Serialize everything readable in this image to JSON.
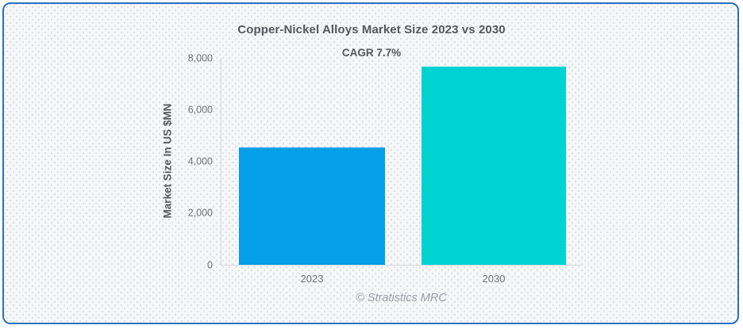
{
  "chart_data": {
    "type": "bar",
    "title": "Copper-Nickel Alloys Market Size 2023 vs 2030",
    "subtitle": "CAGR 7.7%",
    "categories": [
      "2023",
      "2030"
    ],
    "values": [
      4546,
      7675
    ],
    "xlabel": "",
    "ylabel": "Market Size In US $MN",
    "ylim": [
      0,
      8000
    ],
    "yticks": [
      0,
      2000,
      4000,
      6000,
      8000
    ],
    "ytick_labels": [
      "0",
      "2,000",
      "4,000",
      "6,000",
      "8,000"
    ],
    "bar_colors": [
      "#05A0E9",
      "#00D2D3"
    ],
    "legend_position": "none",
    "grid": false
  },
  "footer": {
    "credit": "© Stratistics MRC"
  },
  "colors": {
    "card_border": "#2A6FC2",
    "bar_2023": "#05A0E9",
    "bar_2030": "#00D2D3",
    "axis_line": "#D6D9DC",
    "heading_text": "#54585C",
    "tick_text": "#6E7276",
    "footer_text": "#9AA0A7",
    "card_background": "#F6F7F9"
  }
}
